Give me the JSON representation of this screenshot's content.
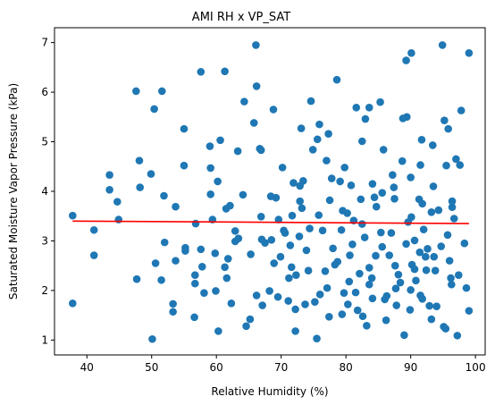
{
  "chart_data": {
    "type": "scatter",
    "title": "AMI RH x VP_SAT",
    "xlabel": "Relative Humidity (%)",
    "ylabel": "Saturated Moisture Vapor Pressure (kPa)",
    "xlim": [
      35.0,
      101.5
    ],
    "ylim": [
      0.7,
      7.3
    ],
    "xticks": [
      40,
      50,
      60,
      70,
      80,
      90,
      100
    ],
    "yticks": [
      1,
      2,
      3,
      4,
      5,
      6,
      7
    ],
    "grid": false,
    "legend": "none",
    "colors": {
      "points": "#1f77b4",
      "trend": "#ff0000"
    },
    "series": [
      {
        "type": "scatter",
        "points": [
          [
            37.8,
            3.51
          ],
          [
            37.8,
            1.74
          ],
          [
            41.1,
            3.22
          ],
          [
            41.1,
            2.71
          ],
          [
            43.5,
            4.33
          ],
          [
            43.5,
            4.03
          ],
          [
            44.7,
            3.79
          ],
          [
            44.9,
            3.43
          ],
          [
            47.6,
            6.02
          ],
          [
            47.7,
            2.23
          ],
          [
            48.1,
            4.62
          ],
          [
            48.2,
            4.08
          ],
          [
            49.9,
            4.35
          ],
          [
            50.1,
            1.02
          ],
          [
            50.4,
            5.66
          ],
          [
            50.6,
            2.55
          ],
          [
            51.6,
            6.02
          ],
          [
            51.5,
            2.21
          ],
          [
            51.9,
            3.91
          ],
          [
            52.0,
            2.97
          ],
          [
            53.3,
            1.73
          ],
          [
            53.3,
            1.57
          ],
          [
            53.7,
            3.69
          ],
          [
            53.7,
            2.6
          ],
          [
            55.0,
            5.26
          ],
          [
            55.0,
            4.52
          ],
          [
            55.2,
            2.86
          ],
          [
            55.2,
            2.8
          ],
          [
            56.6,
            1.46
          ],
          [
            56.7,
            2.31
          ],
          [
            56.7,
            2.14
          ],
          [
            56.8,
            3.35
          ],
          [
            57.6,
            6.41
          ],
          [
            57.6,
            2.83
          ],
          [
            57.8,
            2.48
          ],
          [
            58.1,
            1.95
          ],
          [
            59.0,
            4.91
          ],
          [
            59.1,
            4.47
          ],
          [
            59.1,
            3.94
          ],
          [
            59.4,
            3.43
          ],
          [
            59.8,
            2.75
          ],
          [
            59.9,
            1.99
          ],
          [
            60.2,
            4.2
          ],
          [
            60.3,
            1.18
          ],
          [
            60.6,
            5.03
          ],
          [
            61.3,
            6.42
          ],
          [
            61.3,
            2.47
          ],
          [
            61.5,
            3.65
          ],
          [
            61.6,
            2.25
          ],
          [
            61.8,
            2.64
          ],
          [
            62.1,
            3.71
          ],
          [
            62.3,
            1.74
          ],
          [
            62.9,
            3.2
          ],
          [
            62.9,
            2.99
          ],
          [
            63.3,
            4.81
          ],
          [
            64.1,
            3.93
          ],
          [
            64.3,
            5.81
          ],
          [
            64.6,
            1.28
          ],
          [
            65.2,
            1.42
          ],
          [
            65.3,
            2.73
          ],
          [
            65.8,
            5.38
          ],
          [
            66.1,
            6.95
          ],
          [
            66.2,
            6.12
          ],
          [
            66.2,
            1.9
          ],
          [
            66.7,
            4.86
          ],
          [
            66.9,
            3.49
          ],
          [
            66.9,
            4.83
          ],
          [
            67.1,
            1.7
          ],
          [
            67.5,
            2.96
          ],
          [
            68.2,
            1.99
          ],
          [
            68.4,
            3.9
          ],
          [
            68.5,
            3.02
          ],
          [
            68.8,
            5.65
          ],
          [
            68.9,
            2.55
          ],
          [
            69.2,
            3.87
          ],
          [
            69.5,
            1.87
          ],
          [
            69.6,
            3.43
          ],
          [
            69.9,
            2.68
          ],
          [
            70.2,
            4.48
          ],
          [
            70.4,
            3.21
          ],
          [
            70.6,
            3.16
          ],
          [
            71.1,
            1.79
          ],
          [
            71.2,
            2.25
          ],
          [
            71.4,
            2.91
          ],
          [
            71.6,
            2.47
          ],
          [
            71.7,
            3.51
          ],
          [
            71.9,
            4.17
          ],
          [
            72.2,
            1.18
          ],
          [
            72.2,
            1.62
          ],
          [
            72.3,
            2.31
          ],
          [
            72.8,
            3.09
          ],
          [
            72.9,
            4.11
          ],
          [
            72.9,
            3.8
          ],
          [
            73.1,
            5.27
          ],
          [
            73.2,
            3.66
          ],
          [
            73.4,
            4.21
          ],
          [
            73.7,
            1.72
          ],
          [
            73.9,
            2.81
          ],
          [
            74.2,
            2.4
          ],
          [
            74.4,
            3.25
          ],
          [
            74.6,
            5.82
          ],
          [
            75.2,
            1.77
          ],
          [
            75.5,
            1.03
          ],
          [
            75.6,
            5.05
          ],
          [
            75.8,
            3.52
          ],
          [
            75.9,
            5.35
          ],
          [
            76.0,
            1.92
          ],
          [
            76.4,
            3.21
          ],
          [
            76.8,
            2.39
          ],
          [
            77.0,
            4.62
          ],
          [
            77.1,
            2.05
          ],
          [
            77.3,
            5.16
          ],
          [
            77.4,
            1.47
          ],
          [
            77.5,
            3.82
          ],
          [
            77.8,
            4.26
          ],
          [
            78.3,
            2.52
          ],
          [
            78.6,
            6.25
          ],
          [
            78.7,
            2.58
          ],
          [
            79.1,
            4.2
          ],
          [
            79.3,
            3.22
          ],
          [
            79.4,
            1.52
          ],
          [
            79.5,
            3.61
          ],
          [
            79.7,
            1.95
          ],
          [
            79.8,
            4.48
          ],
          [
            80.2,
            3.56
          ],
          [
            80.3,
            1.72
          ],
          [
            80.5,
            2.18
          ],
          [
            80.8,
            4.12
          ],
          [
            81.0,
            2.93
          ],
          [
            81.2,
            3.41
          ],
          [
            81.5,
            1.96
          ],
          [
            81.6,
            5.69
          ],
          [
            81.8,
            1.6
          ],
          [
            82.1,
            2.34
          ],
          [
            82.3,
            3.84
          ],
          [
            82.5,
            3.34
          ],
          [
            82.5,
            5.01
          ],
          [
            82.6,
            1.48
          ],
          [
            82.9,
            3.07
          ],
          [
            83.0,
            5.46
          ],
          [
            83.2,
            1.29
          ],
          [
            83.6,
            2.46
          ],
          [
            83.6,
            2.12
          ],
          [
            83.6,
            5.69
          ],
          [
            84.1,
            4.15
          ],
          [
            84.1,
            1.84
          ],
          [
            84.4,
            3.88
          ],
          [
            84.6,
            2.7
          ],
          [
            84.7,
            3.69
          ],
          [
            85.3,
            5.8
          ],
          [
            85.4,
            3.17
          ],
          [
            85.6,
            3.97
          ],
          [
            85.6,
            2.88
          ],
          [
            85.8,
            4.84
          ],
          [
            86.0,
            1.82
          ],
          [
            86.3,
            1.89
          ],
          [
            86.7,
            2.71
          ],
          [
            87.0,
            3.16
          ],
          [
            87.2,
            4.33
          ],
          [
            87.4,
            4.08
          ],
          [
            87.6,
            2.5
          ],
          [
            87.7,
            2.04
          ],
          [
            87.8,
            1.7
          ],
          [
            88.1,
            2.32
          ],
          [
            88.4,
            2.16
          ],
          [
            88.7,
            4.61
          ],
          [
            89.0,
            1.1
          ],
          [
            89.3,
            6.64
          ],
          [
            89.3,
            2.94
          ],
          [
            89.4,
            5.5
          ],
          [
            89.6,
            3.38
          ],
          [
            89.9,
            1.61
          ],
          [
            90.0,
            4.28
          ],
          [
            90.0,
            2.01
          ],
          [
            90.1,
            3.48
          ],
          [
            90.2,
            2.52
          ],
          [
            90.6,
            3.01
          ],
          [
            90.6,
            2.43
          ],
          [
            90.8,
            2.2
          ],
          [
            91.3,
            3.84
          ],
          [
            91.4,
            2.77
          ],
          [
            91.5,
            4.53
          ],
          [
            91.7,
            5.04
          ],
          [
            91.8,
            3.75
          ],
          [
            92.0,
            3.23
          ],
          [
            92.3,
            2.68
          ],
          [
            92.4,
            2.41
          ],
          [
            92.6,
            2.84
          ],
          [
            92.9,
            1.69
          ],
          [
            93.2,
            3.58
          ],
          [
            93.2,
            1.42
          ],
          [
            93.5,
            4.1
          ],
          [
            93.6,
            2.68
          ],
          [
            93.8,
            2.4
          ],
          [
            94.0,
            1.68
          ],
          [
            94.3,
            3.62
          ],
          [
            94.7,
            2.89
          ],
          [
            94.9,
            6.95
          ],
          [
            95.1,
            1.27
          ],
          [
            95.2,
            5.43
          ],
          [
            95.4,
            1.23
          ],
          [
            95.5,
            4.52
          ],
          [
            95.7,
            3.12
          ],
          [
            95.8,
            5.26
          ],
          [
            96.0,
            2.6
          ],
          [
            96.2,
            2.25
          ],
          [
            96.3,
            2.12
          ],
          [
            96.4,
            3.68
          ],
          [
            96.7,
            3.45
          ],
          [
            97.0,
            4.65
          ],
          [
            97.2,
            1.09
          ],
          [
            97.4,
            2.31
          ],
          [
            97.6,
            4.53
          ],
          [
            97.8,
            5.63
          ],
          [
            98.3,
            2.95
          ],
          [
            98.6,
            2.05
          ],
          [
            99.0,
            6.79
          ],
          [
            99.0,
            1.59
          ],
          [
            91.5,
            1.9
          ],
          [
            87.5,
            3.85
          ],
          [
            86.2,
            1.4
          ],
          [
            80.6,
            2.71
          ],
          [
            78.0,
            2.85
          ],
          [
            74.9,
            4.84
          ],
          [
            63.4,
            3.05
          ],
          [
            90.1,
            6.79
          ],
          [
            88.8,
            5.47
          ],
          [
            93.4,
            4.93
          ],
          [
            96.4,
            3.8
          ],
          [
            67.0,
            3.03
          ],
          [
            84.0,
            2.25
          ],
          [
            91.8,
            1.83
          ]
        ]
      },
      {
        "type": "line",
        "x": [
          37.8,
          99.0
        ],
        "y": [
          3.4,
          3.35
        ]
      }
    ]
  }
}
